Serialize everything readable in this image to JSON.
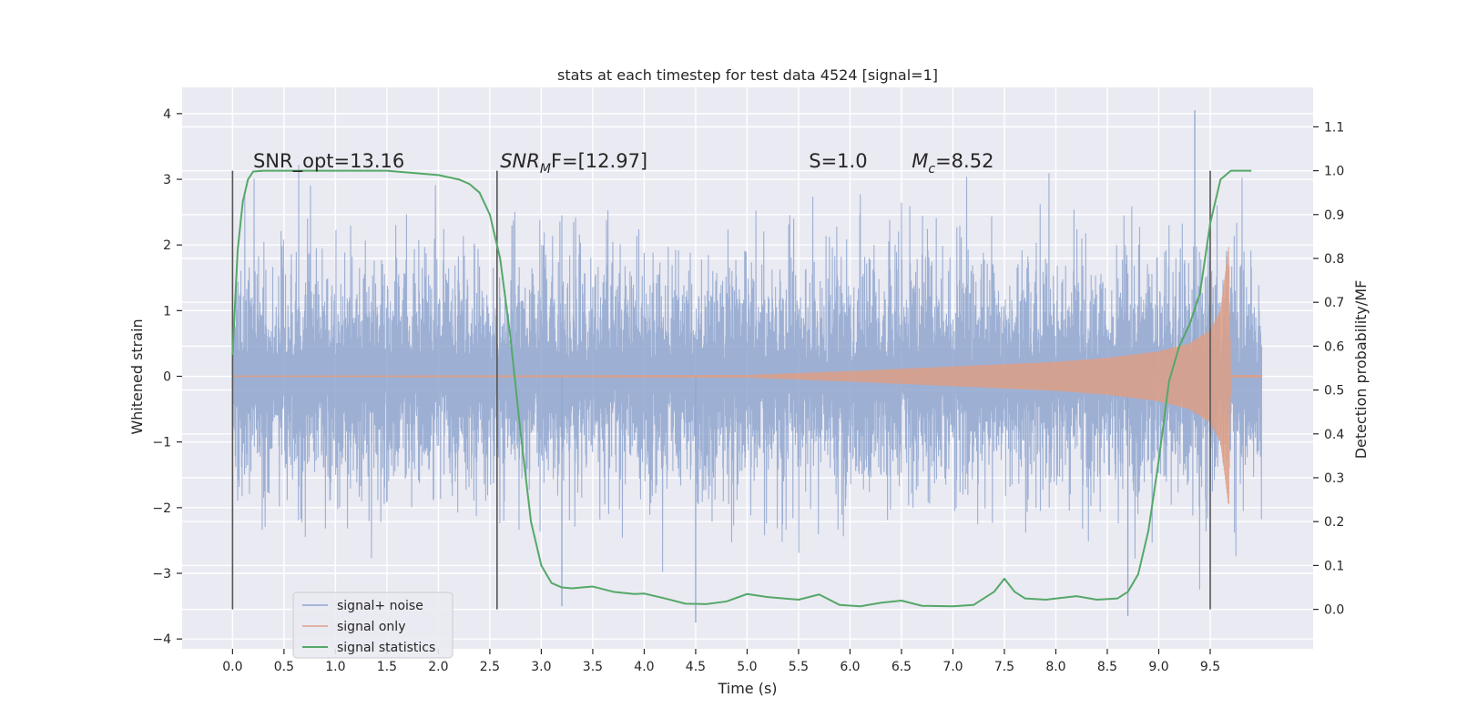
{
  "chart_data": {
    "type": "line",
    "title": "stats at each timestep for test data 4524 [signal=1]",
    "xlabel": "Time (s)",
    "ylabel": "Whitened strain",
    "y2label": "Detection probability/MF",
    "xlim": [
      -0.49,
      10.5
    ],
    "ylim": [
      -4.15,
      4.4
    ],
    "y2lim": [
      -0.09,
      1.19
    ],
    "x_ticks": [
      "0.0",
      "0.5",
      "1.0",
      "1.5",
      "2.0",
      "2.5",
      "3.0",
      "3.5",
      "4.0",
      "4.5",
      "5.0",
      "5.5",
      "6.0",
      "6.5",
      "7.0",
      "7.5",
      "8.0",
      "8.5",
      "9.0",
      "9.5"
    ],
    "y_ticks": [
      "−4",
      "−3",
      "−2",
      "−1",
      "0",
      "1",
      "2",
      "3",
      "4"
    ],
    "y2_ticks": [
      "0.0",
      "0.1",
      "0.2",
      "0.3",
      "0.4",
      "0.5",
      "0.6",
      "0.7",
      "0.8",
      "0.9",
      "1.0",
      "1.1"
    ],
    "grid": true,
    "legend_placement": "lower-left",
    "legend": [
      {
        "label": "signal+ noise",
        "color": "#8fa6cf"
      },
      {
        "label": "signal only",
        "color": "#dd9f86"
      },
      {
        "label": "signal statistics",
        "color": "#55a868"
      }
    ],
    "annotations": [
      {
        "base": "SNR_opt=13.16",
        "sub": "",
        "rest": "",
        "x": 0.2
      },
      {
        "base": "SNR",
        "sub": "M",
        "rest": "F=[12.97]",
        "x": 2.6
      },
      {
        "base": "S",
        "sub": "",
        "rest": "=1.0",
        "x": 5.6
      },
      {
        "base": "M",
        "sub": "c",
        "rest": "=8.52",
        "x": 6.6
      }
    ],
    "vertical_lines": [
      0.0,
      2.57,
      9.5
    ],
    "vertical_line_range": [
      -0.0,
      1.0
    ],
    "series": [
      {
        "name": "signal+ noise",
        "axis": "left",
        "kind": "noise",
        "x_range": [
          0.0,
          10.0
        ],
        "typical_amplitude": 1.0,
        "max": 4.05,
        "min": -3.75
      },
      {
        "name": "signal only",
        "axis": "left",
        "kind": "chirp",
        "envelope_x": [
          0.0,
          5.0,
          6.0,
          7.0,
          8.0,
          8.5,
          9.0,
          9.3,
          9.5,
          9.6,
          9.65,
          9.68,
          9.7,
          10.0
        ],
        "envelope_y": [
          0.01,
          0.02,
          0.08,
          0.15,
          0.22,
          0.28,
          0.38,
          0.5,
          0.7,
          1.0,
          1.6,
          2.0,
          0.02,
          0.02
        ]
      },
      {
        "name": "signal statistics",
        "axis": "right",
        "kind": "line",
        "x": [
          0.0,
          0.05,
          0.1,
          0.15,
          0.2,
          0.3,
          0.5,
          1.0,
          1.5,
          2.0,
          2.2,
          2.3,
          2.4,
          2.5,
          2.6,
          2.7,
          2.8,
          2.9,
          3.0,
          3.1,
          3.2,
          3.3,
          3.5,
          3.7,
          3.9,
          4.0,
          4.2,
          4.4,
          4.6,
          4.8,
          5.0,
          5.2,
          5.5,
          5.7,
          5.9,
          6.1,
          6.3,
          6.5,
          6.7,
          7.0,
          7.2,
          7.4,
          7.5,
          7.6,
          7.7,
          7.9,
          8.2,
          8.4,
          8.6,
          8.7,
          8.8,
          8.9,
          9.0,
          9.1,
          9.2,
          9.3,
          9.4,
          9.5,
          9.6,
          9.7,
          9.8,
          9.9
        ],
        "y": [
          0.58,
          0.82,
          0.93,
          0.98,
          0.998,
          1.0,
          1.0,
          1.0,
          1.0,
          0.99,
          0.98,
          0.97,
          0.95,
          0.9,
          0.8,
          0.62,
          0.4,
          0.2,
          0.1,
          0.06,
          0.05,
          0.048,
          0.052,
          0.04,
          0.035,
          0.036,
          0.025,
          0.013,
          0.012,
          0.018,
          0.035,
          0.028,
          0.022,
          0.034,
          0.01,
          0.007,
          0.015,
          0.02,
          0.008,
          0.007,
          0.01,
          0.04,
          0.07,
          0.04,
          0.025,
          0.022,
          0.03,
          0.022,
          0.025,
          0.04,
          0.08,
          0.18,
          0.34,
          0.52,
          0.6,
          0.65,
          0.72,
          0.88,
          0.98,
          1.0,
          1.0,
          1.0
        ]
      }
    ]
  }
}
